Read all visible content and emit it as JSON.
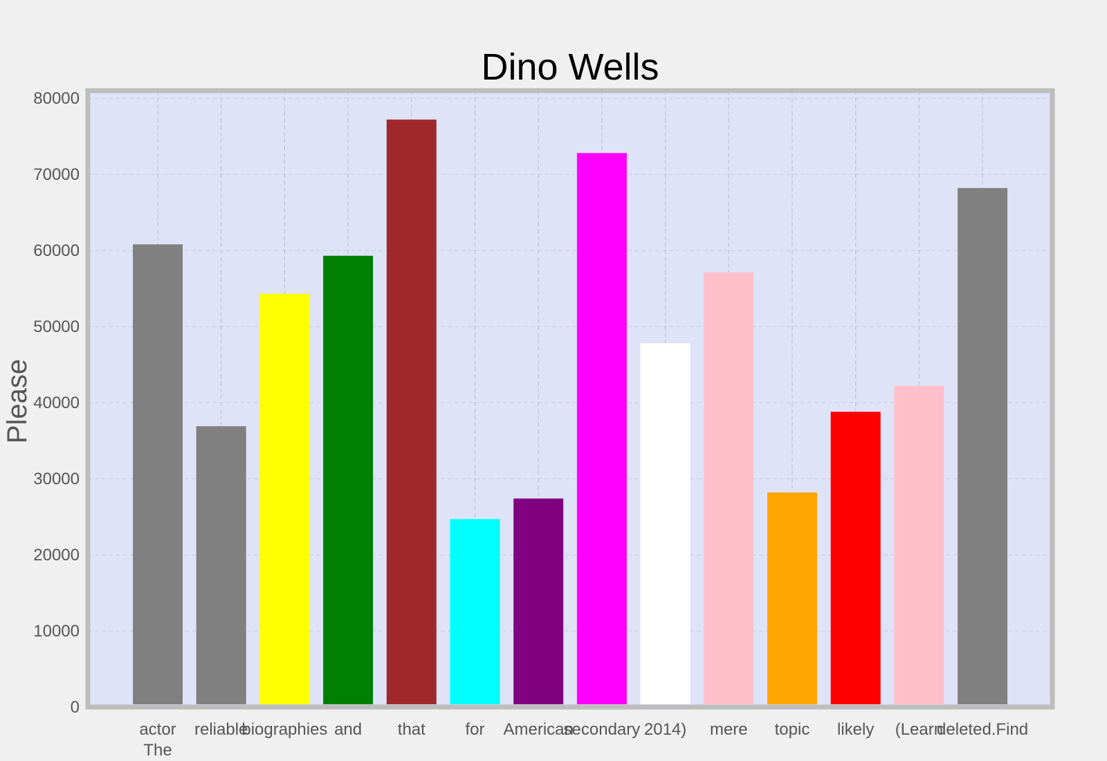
{
  "chart_data": {
    "type": "bar",
    "title": "Dino Wells",
    "xlabel": "",
    "ylabel": "Please",
    "ylim": [
      0,
      80000
    ],
    "yticks": [
      "0",
      "10000",
      "20000",
      "30000",
      "40000",
      "50000",
      "60000",
      "70000",
      "80000"
    ],
    "grid": true,
    "categories": [
      "actor\nThe",
      "reliable",
      "biographies",
      "and",
      "that",
      "for",
      "American",
      "secondary",
      "2014)",
      "mere",
      "topic",
      "likely",
      "(Learn",
      "deleted.Find"
    ],
    "values": [
      60800,
      36900,
      54300,
      59300,
      77200,
      24700,
      27400,
      72800,
      47800,
      57100,
      28200,
      38800,
      42200,
      68200
    ],
    "colors": [
      "#808080",
      "#808080",
      "#ffff00",
      "#008000",
      "#a0282c",
      "#00ffff",
      "#800080",
      "#ff00ff",
      "#ffffff",
      "#ffc0cb",
      "#ffa500",
      "#ff0000",
      "#ffc0cb",
      "#808080"
    ],
    "plot_background": "#dfe3f8",
    "frame_color": "#bdbdbd"
  }
}
